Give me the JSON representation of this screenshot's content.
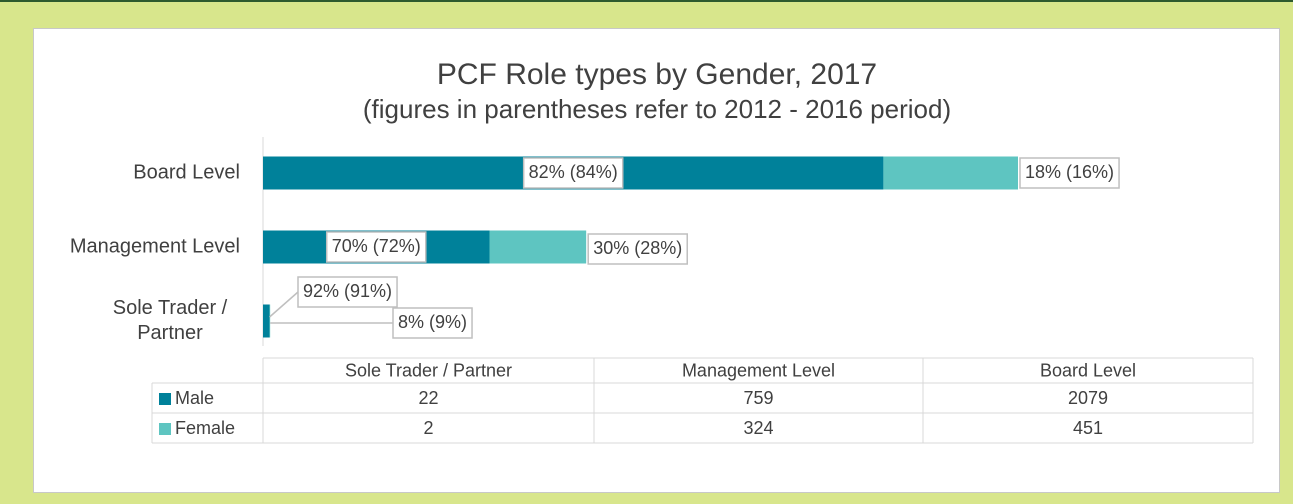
{
  "chart_data": {
    "type": "bar",
    "orientation": "horizontal",
    "stacked": true,
    "title": "PCF Role types by Gender, 2017",
    "subtitle": "(figures in parentheses refer to 2012 - 2016 period)",
    "categories": [
      "Sole Trader / Partner",
      "Management Level",
      "Board Level"
    ],
    "series": [
      {
        "name": "Male",
        "color": "#00819a",
        "values": [
          22,
          759,
          2079
        ],
        "value_labels": [
          "92% (91%)",
          "70% (72%)",
          "82% (84%)"
        ]
      },
      {
        "name": "Female",
        "color": "#5ec5c1",
        "values": [
          2,
          324,
          451
        ],
        "value_labels": [
          "8% (9%)",
          "30% (28%)",
          "18% (16%)"
        ]
      }
    ],
    "data_table": true
  }
}
